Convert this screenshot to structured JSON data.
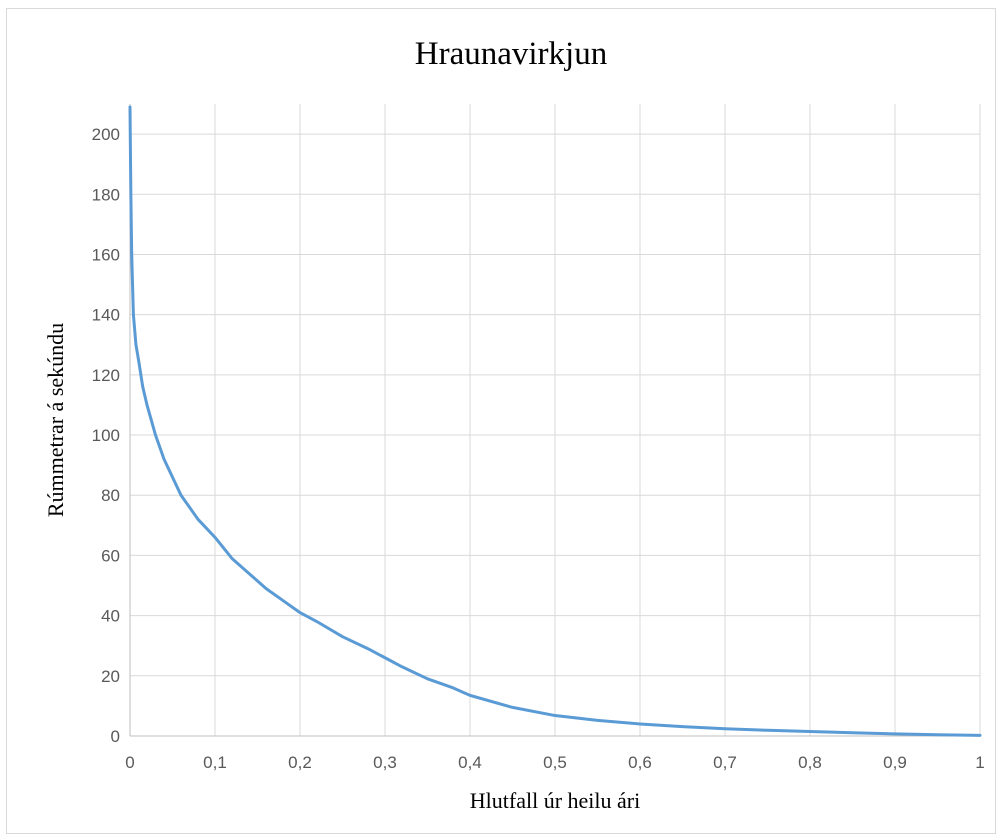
{
  "chart_data": {
    "type": "line",
    "title": "Hraunavirkjun",
    "xlabel": "Hlutfall úr heilu ári",
    "ylabel": "Rúmmetrar á sekúndu",
    "xlim": [
      0,
      1
    ],
    "ylim": [
      0,
      210
    ],
    "xticks": [
      "0",
      "0,1",
      "0,2",
      "0,3",
      "0,4",
      "0,5",
      "0,6",
      "0,7",
      "0,8",
      "0,9",
      "1"
    ],
    "yticks": [
      "0",
      "20",
      "40",
      "60",
      "80",
      "100",
      "120",
      "140",
      "160",
      "180",
      "200"
    ],
    "xtick_values": [
      0,
      0.1,
      0.2,
      0.3,
      0.4,
      0.5,
      0.6,
      0.7,
      0.8,
      0.9,
      1
    ],
    "ytick_values": [
      0,
      20,
      40,
      60,
      80,
      100,
      120,
      140,
      160,
      180,
      200
    ],
    "grid": true,
    "legend": "none",
    "series": [
      {
        "color": "#5b9bd5",
        "x": [
          0,
          0.001,
          0.002,
          0.004,
          0.007,
          0.01,
          0.015,
          0.02,
          0.03,
          0.04,
          0.05,
          0.06,
          0.07,
          0.08,
          0.09,
          0.1,
          0.12,
          0.14,
          0.16,
          0.18,
          0.2,
          0.22,
          0.25,
          0.28,
          0.3,
          0.32,
          0.35,
          0.38,
          0.4,
          0.45,
          0.5,
          0.55,
          0.6,
          0.65,
          0.7,
          0.75,
          0.8,
          0.85,
          0.9,
          0.95,
          1.0
        ],
        "y": [
          209,
          180,
          160,
          140,
          130,
          125,
          116,
          110,
          100,
          92,
          86,
          80,
          76,
          72,
          69,
          66,
          59,
          54,
          49,
          45,
          41,
          38,
          33,
          29,
          26,
          23,
          19,
          16,
          13.5,
          9.5,
          6.8,
          5.2,
          4.0,
          3.1,
          2.4,
          1.9,
          1.5,
          1.1,
          0.7,
          0.4,
          0.2
        ]
      }
    ]
  }
}
